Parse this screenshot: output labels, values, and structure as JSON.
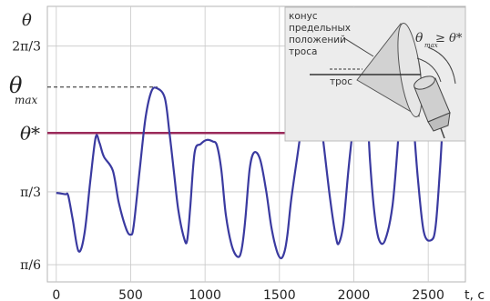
{
  "chart_data": {
    "type": "line",
    "title": "",
    "xlabel": "t, c",
    "ylabel": "θ",
    "xlim": [
      -60,
      2750
    ],
    "ylim": [
      0.4,
      2.38
    ],
    "x_ticks": [
      0,
      500,
      1000,
      1500,
      2000,
      2500
    ],
    "y_ticks": [
      {
        "value": 0.5236,
        "label": "π/6"
      },
      {
        "value": 1.0472,
        "label": "π/3"
      },
      {
        "value": 2.0944,
        "label": "2π/3"
      }
    ],
    "grid": true,
    "theta_star": {
      "value": 1.47,
      "label": "θ*"
    },
    "theta_max": {
      "value": 1.8,
      "label": "θ",
      "sub": "max"
    },
    "series": [
      {
        "color": "#3a3aa0",
        "x": [
          0,
          60,
          80,
          110,
          150,
          190,
          230,
          265,
          290,
          320,
          380,
          420,
          470,
          500,
          520,
          560,
          600,
          640,
          680,
          730,
          760,
          790,
          820,
          860,
          880,
          900,
          930,
          970,
          1010,
          1050,
          1080,
          1110,
          1140,
          1180,
          1220,
          1245,
          1270,
          1300,
          1330,
          1370,
          1410,
          1445,
          1480,
          1510,
          1535,
          1555,
          1580,
          1620,
          1660,
          1690,
          1720,
          1750,
          1790,
          1840,
          1880,
          1900,
          1930,
          1965,
          1990,
          2030,
          2060,
          2090,
          2110,
          2140,
          2170,
          2210,
          2260,
          2300,
          2330,
          2365,
          2395,
          2430,
          2470,
          2520,
          2550,
          2580,
          2605,
          2640,
          2670,
          2700
        ],
        "y": [
          1.04,
          1.03,
          1.02,
          0.85,
          0.62,
          0.75,
          1.14,
          1.44,
          1.4,
          1.3,
          1.2,
          0.97,
          0.78,
          0.74,
          0.8,
          1.2,
          1.58,
          1.77,
          1.79,
          1.72,
          1.48,
          1.2,
          0.92,
          0.71,
          0.7,
          0.93,
          1.33,
          1.39,
          1.42,
          1.41,
          1.38,
          1.2,
          0.88,
          0.66,
          0.58,
          0.63,
          0.84,
          1.21,
          1.33,
          1.28,
          1.06,
          0.8,
          0.63,
          0.57,
          0.62,
          0.75,
          1.0,
          1.3,
          1.6,
          1.77,
          1.79,
          1.72,
          1.45,
          1.0,
          0.72,
          0.68,
          0.82,
          1.22,
          1.47,
          1.85,
          1.86,
          1.62,
          1.25,
          0.88,
          0.7,
          0.7,
          0.95,
          1.45,
          1.9,
          1.92,
          1.62,
          1.15,
          0.76,
          0.7,
          0.8,
          1.22,
          1.65,
          1.95,
          1.9,
          1.6
        ]
      }
    ]
  },
  "inset": {
    "cone_label": [
      "конус",
      "предельных",
      "положений",
      "троса"
    ],
    "rope_label": "трос",
    "angle_label_main": "θ",
    "angle_label_sub": "max",
    "angle_label_rest": "≥ θ*"
  }
}
